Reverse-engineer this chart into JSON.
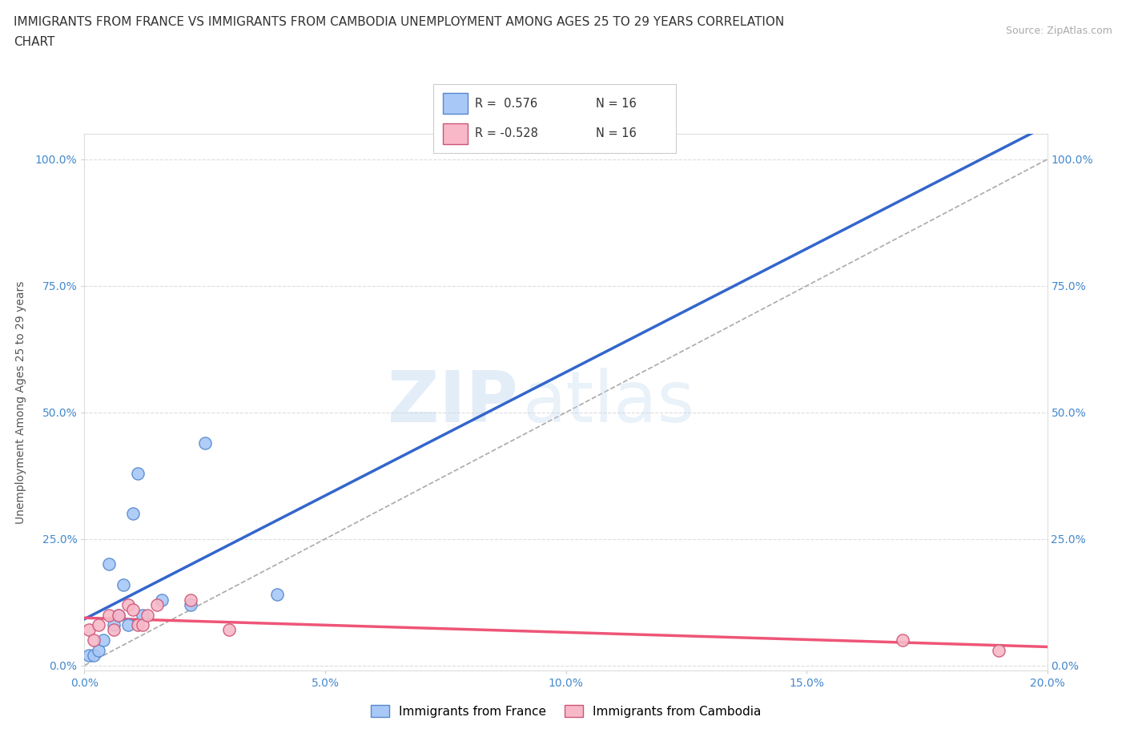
{
  "title_line1": "IMMIGRANTS FROM FRANCE VS IMMIGRANTS FROM CAMBODIA UNEMPLOYMENT AMONG AGES 25 TO 29 YEARS CORRELATION",
  "title_line2": "CHART",
  "source_text": "Source: ZipAtlas.com",
  "ylabel": "Unemployment Among Ages 25 to 29 years",
  "xlim": [
    0.0,
    0.2
  ],
  "ylim": [
    -0.01,
    1.05
  ],
  "xtick_labels": [
    "0.0%",
    "5.0%",
    "10.0%",
    "15.0%",
    "20.0%"
  ],
  "xtick_vals": [
    0.0,
    0.05,
    0.1,
    0.15,
    0.2
  ],
  "ytick_labels": [
    "0.0%",
    "25.0%",
    "50.0%",
    "75.0%",
    "100.0%"
  ],
  "ytick_vals": [
    0.0,
    0.25,
    0.5,
    0.75,
    1.0
  ],
  "france_color": "#a8c8f8",
  "france_edge_color": "#5588cc",
  "cambodia_color": "#f8b8c8",
  "cambodia_edge_color": "#cc5577",
  "france_line_color": "#3366cc",
  "cambodia_line_color": "#ee5577",
  "diag_line_color": "#aaaaaa",
  "legend_R_france": "R =  0.576",
  "legend_N_france": "N = 16",
  "legend_R_cambodia": "R = -0.528",
  "legend_N_cambodia": "N = 16",
  "watermark_zip": "ZIP",
  "watermark_atlas": "atlas",
  "france_x": [
    0.001,
    0.002,
    0.003,
    0.004,
    0.005,
    0.006,
    0.007,
    0.008,
    0.009,
    0.01,
    0.011,
    0.012,
    0.016,
    0.022,
    0.025,
    0.04
  ],
  "france_y": [
    0.02,
    0.02,
    0.03,
    0.05,
    0.2,
    0.08,
    0.1,
    0.16,
    0.08,
    0.3,
    0.38,
    0.1,
    0.13,
    0.12,
    0.44,
    0.14
  ],
  "cambodia_x": [
    0.001,
    0.002,
    0.003,
    0.005,
    0.006,
    0.007,
    0.009,
    0.01,
    0.011,
    0.012,
    0.013,
    0.015,
    0.022,
    0.03,
    0.17,
    0.19
  ],
  "cambodia_y": [
    0.07,
    0.05,
    0.08,
    0.1,
    0.07,
    0.1,
    0.12,
    0.11,
    0.08,
    0.08,
    0.1,
    0.12,
    0.13,
    0.07,
    0.05,
    0.03
  ],
  "background_color": "#ffffff",
  "grid_color": "#dddddd",
  "title_fontsize": 11,
  "axis_label_fontsize": 10,
  "tick_fontsize": 10,
  "marker_size": 120
}
